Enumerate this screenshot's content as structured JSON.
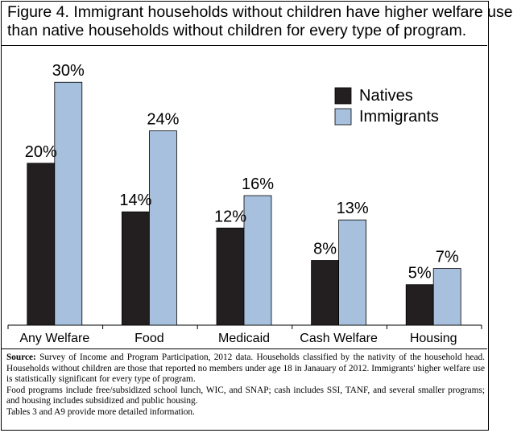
{
  "title_lines": [
    "Figure 4. Immigrant households without children have higher welfare use",
    "than native households without children for every type of program."
  ],
  "chart_data": {
    "type": "bar",
    "title": "Figure 4. Immigrant households without children have higher welfare use than native households without children for every type of program.",
    "categories": [
      "Any Welfare",
      "Food",
      "Medicaid",
      "Cash Welfare",
      "Housing"
    ],
    "series": [
      {
        "name": "Natives",
        "values": [
          20,
          14,
          12,
          8,
          5
        ],
        "color": "#231f20",
        "labels": [
          "20%",
          "14%",
          "12%",
          "8%",
          "5%"
        ]
      },
      {
        "name": "Immigrants",
        "values": [
          30,
          24,
          16,
          13,
          7
        ],
        "color": "#a7c0dd",
        "labels": [
          "30%",
          "24%",
          "16%",
          "13%",
          "7%"
        ]
      }
    ],
    "ylim": [
      0,
      34
    ],
    "xlabel": "",
    "ylabel": "",
    "grid": false,
    "legend_position": "top-right"
  },
  "notes": {
    "source_label": "Source:",
    "source_text": " Survey of Income and Program Participation, 2012 data. Households classified by the nativity of the household head. Households without children are those that reported no members under age 18 in Janauary of 2012. Immigrants' higher welfare use is statistically significant  for every type of program.",
    "food_note": "Food programs include free/subsidized school lunch, WIC, and SNAP; cash includes SSI, TANF, and several smaller programs; and housing includes subsidized and public housing.",
    "tables_note": "Tables 3 and A9 provide more detailed information."
  }
}
